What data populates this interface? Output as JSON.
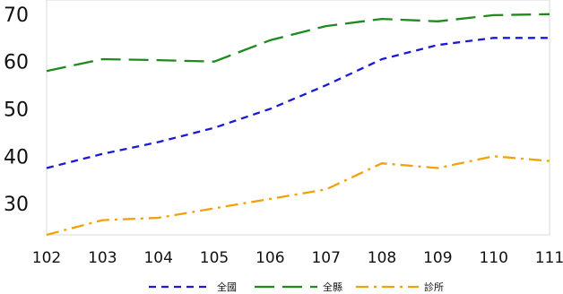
{
  "chart_data": {
    "type": "line",
    "title": "",
    "xlabel": "",
    "ylabel": "",
    "x": [
      "102",
      "103",
      "104",
      "105",
      "106",
      "107",
      "108",
      "109",
      "110",
      "111"
    ],
    "ylim": [
      23.4,
      73
    ],
    "yticks": [
      30,
      40,
      50,
      60,
      70
    ],
    "grid": false,
    "legend_position": "bottom-center",
    "series": [
      {
        "name": "全國",
        "color": "#1a1ad6",
        "dash": "dash",
        "values": [
          37.5,
          40.5,
          43.0,
          46.0,
          50.0,
          55.0,
          60.5,
          63.5,
          65.0,
          65.0
        ]
      },
      {
        "name": "全縣",
        "color": "#1e8a1e",
        "dash": "longdash",
        "values": [
          58.0,
          60.5,
          60.3,
          60.0,
          64.5,
          67.5,
          69.0,
          68.5,
          69.8,
          70.0
        ]
      },
      {
        "name": "診所",
        "color": "#f0a20a",
        "dash": "dashdot",
        "values": [
          23.4,
          26.5,
          27.0,
          29.0,
          31.0,
          33.0,
          38.5,
          37.5,
          40.0,
          39.0
        ]
      }
    ]
  }
}
